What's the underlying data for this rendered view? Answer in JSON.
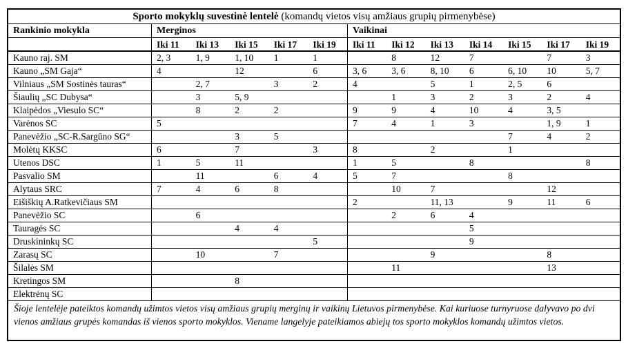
{
  "page": {
    "background": "#ffffff",
    "text_color": "#000000",
    "border_color": "#000000"
  },
  "title": {
    "bold": "Sporto mokyklų suvestinė lentelė",
    "normal": " (komandų vietos visų amžiaus grupių pirmenybėse)"
  },
  "header": {
    "school_column": "Rankinio mokykla",
    "girls_group": "Merginos",
    "boys_group": "Vaikinai",
    "girls_age_columns": [
      "Iki 11",
      "Iki 13",
      "Iki 15",
      "Iki 17",
      "Iki 19"
    ],
    "boys_age_columns": [
      "Iki 11",
      "Iki 12",
      "Iki 13",
      "Iki 14",
      "Iki 15",
      "Iki 17",
      "Iki 19"
    ]
  },
  "rows": [
    {
      "school": "Kauno raj. SM",
      "girls": [
        "2, 3",
        "1, 9",
        "1, 10",
        "1",
        "1"
      ],
      "boys": [
        "",
        "8",
        "12",
        "7",
        "",
        "7",
        "3"
      ]
    },
    {
      "school": "Kauno „SM Gaja“",
      "girls": [
        "4",
        "",
        "12",
        "",
        "6"
      ],
      "boys": [
        "3, 6",
        "3, 6",
        "8, 10",
        "6",
        "6, 10",
        "10",
        "5, 7"
      ]
    },
    {
      "school": "Vilniaus „SM Sostinės tauras“",
      "girls": [
        "",
        "2, 7",
        "",
        "3",
        "2"
      ],
      "boys": [
        "4",
        "",
        "5",
        "1",
        "2, 5",
        "6",
        ""
      ]
    },
    {
      "school": "Šiaulių „SC Dubysa“",
      "girls": [
        "",
        "3",
        "5, 9",
        "",
        ""
      ],
      "boys": [
        "",
        "1",
        "3",
        "2",
        "3",
        "2",
        "4"
      ]
    },
    {
      "school": "Klaipėdos „Viesulo SC“",
      "girls": [
        "",
        "8",
        "2",
        "2",
        ""
      ],
      "boys": [
        "9",
        "9",
        "4",
        "10",
        "4",
        "3, 5",
        ""
      ]
    },
    {
      "school": "Varėnos SC",
      "girls": [
        "5",
        "",
        "",
        "",
        ""
      ],
      "boys": [
        "7",
        "4",
        "1",
        "3",
        "",
        "1, 9",
        "1"
      ]
    },
    {
      "school": "Panevėžio „SC-R.Sargūno SG“",
      "girls": [
        "",
        "",
        "3",
        "5",
        ""
      ],
      "boys": [
        "",
        "",
        "",
        "",
        "7",
        "4",
        "2"
      ]
    },
    {
      "school": "Molėtų KKSC",
      "girls": [
        "6",
        "",
        "7",
        "",
        "3"
      ],
      "boys": [
        "8",
        "",
        "2",
        "",
        "1",
        "",
        ""
      ]
    },
    {
      "school": "Utenos DSC",
      "girls": [
        "1",
        "5",
        "11",
        "",
        ""
      ],
      "boys": [
        "1",
        "5",
        "",
        "8",
        "",
        "",
        "8"
      ]
    },
    {
      "school": "Pasvalio SM",
      "girls": [
        "",
        "11",
        "",
        "6",
        "4"
      ],
      "boys": [
        "5",
        "7",
        "",
        "",
        "8",
        "",
        ""
      ]
    },
    {
      "school": "Alytaus SRC",
      "girls": [
        "7",
        "4",
        "6",
        "8",
        ""
      ],
      "boys": [
        "",
        "10",
        "7",
        "",
        "",
        "12",
        ""
      ]
    },
    {
      "school": "Eišiškių A.Ratkevičiaus SM",
      "girls": [
        "",
        "",
        "",
        "",
        ""
      ],
      "boys": [
        "2",
        "",
        "11, 13",
        "",
        "9",
        "11",
        "6"
      ]
    },
    {
      "school": "Panevėžio SC",
      "girls": [
        "",
        "6",
        "",
        "",
        ""
      ],
      "boys": [
        "",
        "2",
        "6",
        "4",
        "",
        "",
        ""
      ]
    },
    {
      "school": "Tauragės SC",
      "girls": [
        "",
        "",
        "4",
        "4",
        ""
      ],
      "boys": [
        "",
        "",
        "",
        "5",
        "",
        "",
        ""
      ]
    },
    {
      "school": "Druskininkų SC",
      "girls": [
        "",
        "",
        "",
        "",
        "5"
      ],
      "boys": [
        "",
        "",
        "",
        "9",
        "",
        "",
        ""
      ]
    },
    {
      "school": "Zarasų SC",
      "girls": [
        "",
        "10",
        "",
        "7",
        ""
      ],
      "boys": [
        "",
        "",
        "9",
        "",
        "",
        "8",
        ""
      ]
    },
    {
      "school": "Šilalės SM",
      "girls": [
        "",
        "",
        "",
        "",
        ""
      ],
      "boys": [
        "",
        "11",
        "",
        "",
        "",
        "13",
        ""
      ]
    },
    {
      "school": "Kretingos SM",
      "girls": [
        "",
        "",
        "8",
        "",
        ""
      ],
      "boys": [
        "",
        "",
        "",
        "",
        "",
        "",
        ""
      ]
    },
    {
      "school": "Elektrėnų SC",
      "girls": [
        "",
        "",
        "",
        "",
        ""
      ],
      "boys": [
        "",
        "",
        "",
        "",
        "",
        "",
        ""
      ]
    }
  ],
  "footer": {
    "note": "Šioje lentelėje pateiktos komandų užimtos vietos visų amžiaus grupių merginų ir vaikinų Lietuvos pirmenybėse. Kai kuriuose turnyruose dalyvavo po dvi vienos amžiaus grupės komandas iš vienos sporto mokyklos. Viename langelyje pateikiamos abiejų tos sporto mokyklos komandų užimtos vietos."
  }
}
